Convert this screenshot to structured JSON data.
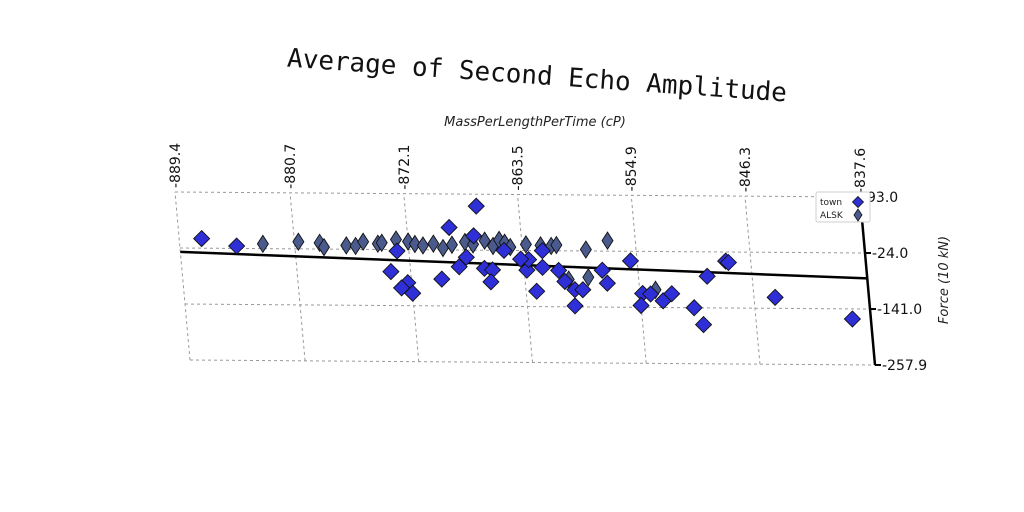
{
  "chart_data": {
    "type": "scatter",
    "title": "Average of Second Echo Amplitude",
    "xlabel": "MassPerLengthPerTime (cP)",
    "ylabel": "Force (10 kN)",
    "x_ticks": [
      "-889.4",
      "-880.7",
      "-872.1",
      "-863.5",
      "-854.9",
      "-846.3",
      "-837.6"
    ],
    "y_ticks": [
      "93.0",
      "-24.0",
      "-141.0",
      "-257.9"
    ],
    "xlim": [
      -889.4,
      -837.6
    ],
    "ylim": [
      -257.9,
      93.0
    ],
    "grid": true,
    "legend_position": "top-right",
    "colors": {
      "town": "#2f2fd8",
      "ALSK": "#4a5a8c",
      "trend": "#000000"
    },
    "trend_line": {
      "x": [
        -889.4,
        -837.6
      ],
      "y": [
        -32,
        -77
      ]
    },
    "series": [
      {
        "name": "town",
        "marker": "diamond",
        "points": [
          [
            -887.7,
            -4
          ],
          [
            -885.1,
            -19
          ],
          [
            -873.0,
            -27
          ],
          [
            -873.6,
            -70
          ],
          [
            -872.4,
            -93
          ],
          [
            -872.9,
            -104
          ],
          [
            -872.1,
            -115
          ],
          [
            -869.8,
            -85
          ],
          [
            -868.9,
            23
          ],
          [
            -868.4,
            -59
          ],
          [
            -867.1,
            6
          ],
          [
            -867.8,
            -39
          ],
          [
            -866.5,
            -62
          ],
          [
            -866.7,
            68
          ],
          [
            -865.9,
            -65
          ],
          [
            -866.1,
            -90
          ],
          [
            -864.9,
            -24
          ],
          [
            -863.3,
            -65
          ],
          [
            -863.1,
            -43
          ],
          [
            -862.7,
            -109
          ],
          [
            -863.7,
            -42
          ],
          [
            -862.0,
            -24
          ],
          [
            -862.1,
            -59
          ],
          [
            -860.9,
            -65
          ],
          [
            -860.5,
            -88
          ],
          [
            -859.8,
            -105
          ],
          [
            -859.2,
            -105
          ],
          [
            -859.9,
            -139
          ],
          [
            -857.6,
            -64
          ],
          [
            -857.3,
            -91
          ],
          [
            -855.4,
            -44
          ],
          [
            -854.7,
            -112
          ],
          [
            -854.1,
            -113
          ],
          [
            -854.9,
            -137
          ],
          [
            -853.2,
            -127
          ],
          [
            -852.5,
            -112
          ],
          [
            -850.9,
            -141
          ],
          [
            -850.3,
            -176
          ],
          [
            -849.7,
            -75
          ],
          [
            -848.2,
            -43
          ],
          [
            -848.0,
            -46
          ],
          [
            -844.7,
            -118
          ],
          [
            -839.0,
            -162
          ]
        ]
      },
      {
        "name": "ALSK",
        "marker": "diamond",
        "points": [
          [
            -883.1,
            -14
          ],
          [
            -880.4,
            -9
          ],
          [
            -878.8,
            -11
          ],
          [
            -878.5,
            -20
          ],
          [
            -876.8,
            -16
          ],
          [
            -876.1,
            -17
          ],
          [
            -875.5,
            -8
          ],
          [
            -874.4,
            -12
          ],
          [
            -874.1,
            -10
          ],
          [
            -873.0,
            -3
          ],
          [
            -872.1,
            -7
          ],
          [
            -871.6,
            -12
          ],
          [
            -871.0,
            -15
          ],
          [
            -870.2,
            -11
          ],
          [
            -869.5,
            -20
          ],
          [
            -868.8,
            -13
          ],
          [
            -867.8,
            -7
          ],
          [
            -867.2,
            -12
          ],
          [
            -866.3,
            -4
          ],
          [
            -865.7,
            -15
          ],
          [
            -865.2,
            -2
          ],
          [
            -864.8,
            -8
          ],
          [
            -864.4,
            -17
          ],
          [
            -863.2,
            -11
          ],
          [
            -862.1,
            -13
          ],
          [
            -861.3,
            -14
          ],
          [
            -860.9,
            -12
          ],
          [
            -858.7,
            -21
          ],
          [
            -857.0,
            -2
          ],
          [
            -860.2,
            -84
          ],
          [
            -858.7,
            -79
          ],
          [
            -853.7,
            -104
          ]
        ]
      }
    ]
  }
}
